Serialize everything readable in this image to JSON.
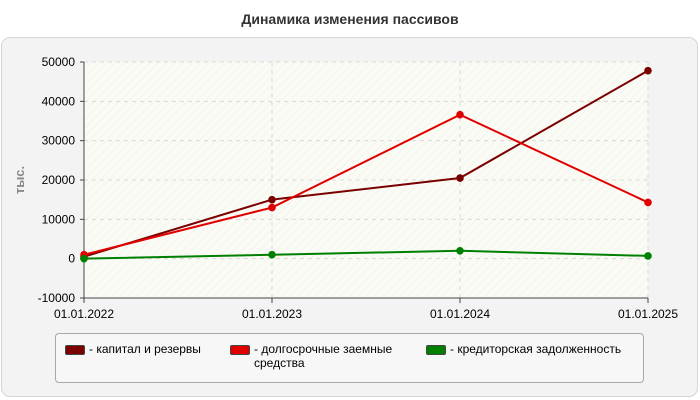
{
  "chart_data": {
    "type": "line",
    "title": "Динамика изменения пассивов",
    "ylabel": "тыс.",
    "xlabel": "",
    "categories": [
      "01.01.2022",
      "01.01.2023",
      "01.01.2024",
      "01.01.2025"
    ],
    "ylim": [
      -10000,
      50000
    ],
    "yticks": [
      -10000,
      0,
      10000,
      20000,
      30000,
      40000,
      50000
    ],
    "grid": true,
    "legend_position": "bottom",
    "series": [
      {
        "name": "- капитал и резервы",
        "color": "#7a0000",
        "values": [
          500,
          15000,
          20500,
          47800
        ]
      },
      {
        "name": "- долгосрочные заемные средства",
        "color": "#e00000",
        "values": [
          1000,
          13000,
          36600,
          14300
        ]
      },
      {
        "name": "- кредиторская задолженность",
        "color": "#008000",
        "values": [
          0,
          1000,
          2000,
          700
        ]
      }
    ]
  }
}
